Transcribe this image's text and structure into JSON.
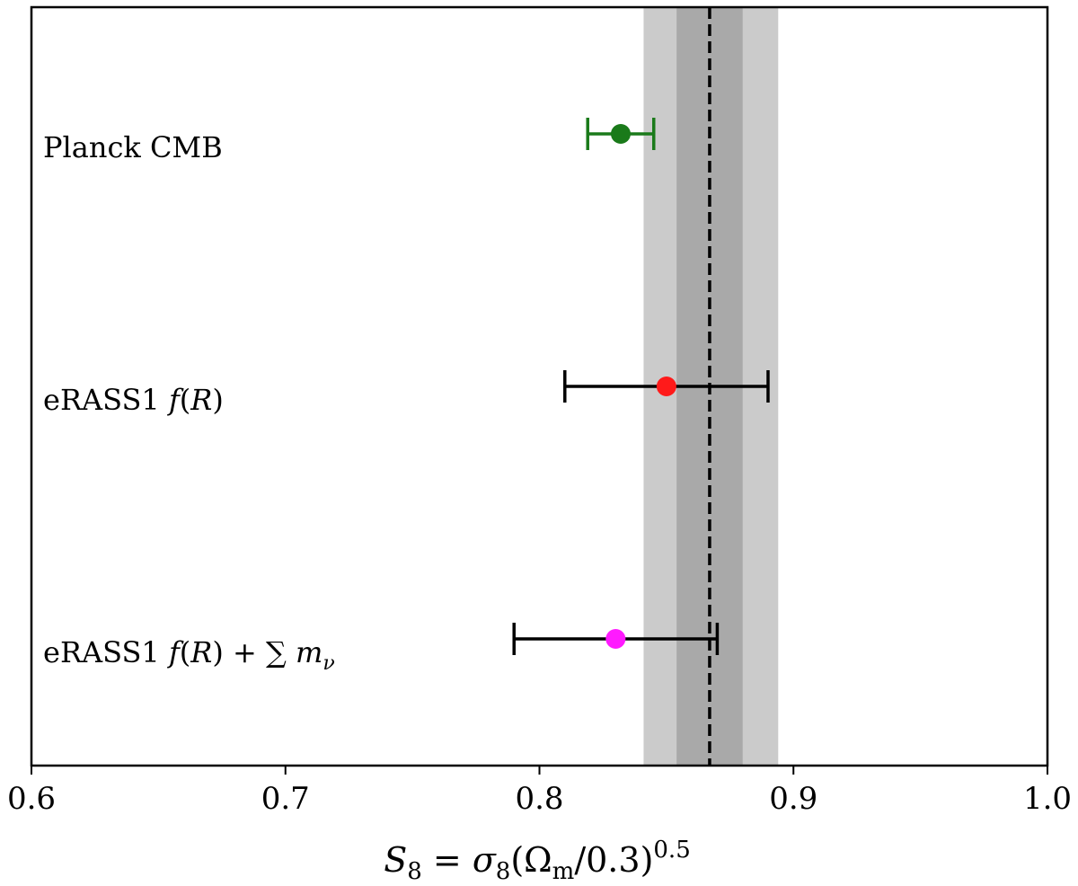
{
  "chart_data": {
    "type": "scatter",
    "title": "",
    "xlabel": "S_8 = σ_8(Ω_m/0.3)^0.5",
    "ylabel": "",
    "xlim": [
      0.6,
      1.0
    ],
    "x_ticks": [
      "0.6",
      "0.7",
      "0.8",
      "0.9",
      "1.0"
    ],
    "grid": false,
    "reference": {
      "line": 0.867,
      "band_1sigma": [
        0.854,
        0.88
      ],
      "band_2sigma": [
        0.841,
        0.894
      ],
      "line_color": "#000000",
      "band_1sigma_color": "#a9a9a9",
      "band_2sigma_color": "#cbcbcb"
    },
    "points": [
      {
        "label_parts": [
          {
            "t": "Planck CMB",
            "i": false
          }
        ],
        "x": 0.832,
        "xerr_low": 0.013,
        "xerr_high": 0.013,
        "color": "#1a7a1a"
      },
      {
        "label_parts": [
          {
            "t": "eRASS1 ",
            "i": false
          },
          {
            "t": "f",
            "i": true
          },
          {
            "t": "(",
            "i": false
          },
          {
            "t": "R",
            "i": true
          },
          {
            "t": ")",
            "i": false
          }
        ],
        "x": 0.85,
        "xerr_low": 0.04,
        "xerr_high": 0.04,
        "color": "#ff1a1a",
        "errcolor": "#000000"
      },
      {
        "label_parts": [
          {
            "t": "eRASS1 ",
            "i": false
          },
          {
            "t": "f",
            "i": true
          },
          {
            "t": "(",
            "i": false
          },
          {
            "t": "R",
            "i": true
          },
          {
            "t": ") + ∑ ",
            "i": false
          },
          {
            "t": "m",
            "i": true
          },
          {
            "t": "ν",
            "i": true,
            "sub": true
          }
        ],
        "x": 0.83,
        "xerr_low": 0.04,
        "xerr_high": 0.04,
        "color": "#ff1aff",
        "errcolor": "#000000"
      }
    ]
  }
}
